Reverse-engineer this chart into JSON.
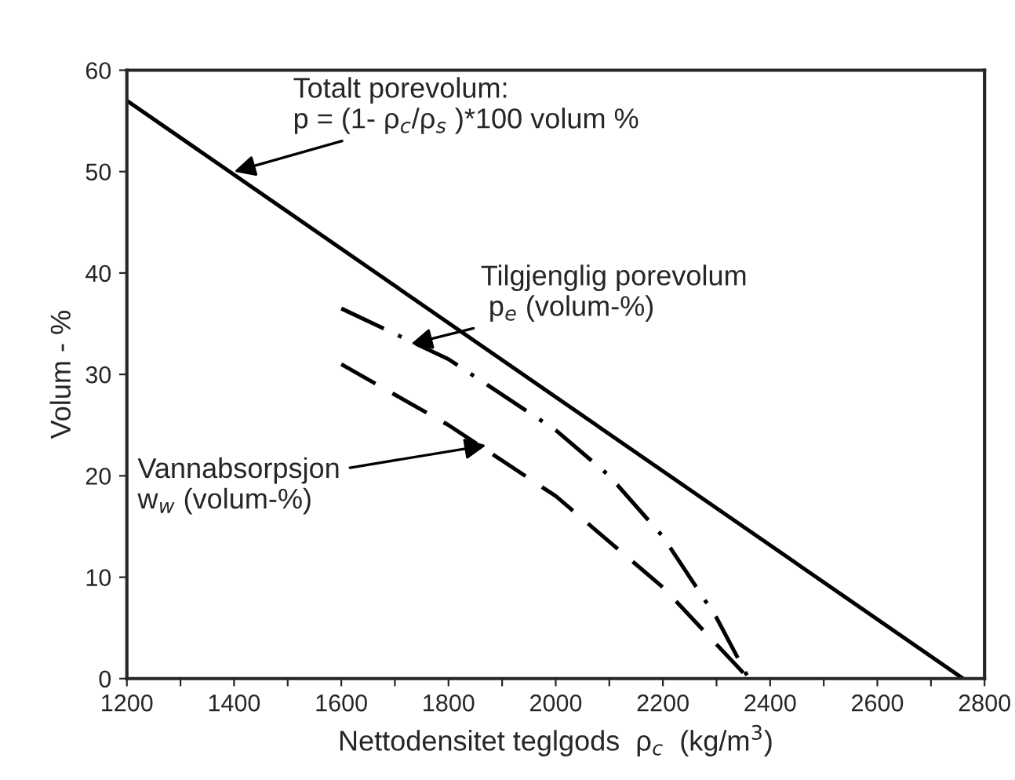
{
  "chart_data": {
    "type": "line",
    "xlabel": "Nettodensitet teglgods  ρ$_{c}$  (kg/m$^{3}$)",
    "ylabel": "Volum - %",
    "xlim": [
      1200,
      2800
    ],
    "ylim": [
      0,
      60
    ],
    "xticks": [
      1200,
      {
        "value": 1300,
        "label": null
      },
      1400,
      {
        "value": 1500,
        "label": null
      },
      1600,
      {
        "value": 1700,
        "label": null
      },
      1800,
      {
        "value": 1900,
        "label": null
      },
      2000,
      {
        "value": 2100,
        "label": null
      },
      2200,
      {
        "value": 2300,
        "label": null
      },
      2400,
      {
        "value": 2500,
        "label": null
      },
      2600,
      {
        "value": 2700,
        "label": null
      },
      2800
    ],
    "yticks": [
      0,
      10,
      20,
      30,
      40,
      50,
      60
    ],
    "grid": false,
    "legend": false,
    "marker": "none",
    "series": [
      {
        "color": "#000000",
        "line_style": "solid",
        "x": [
          1200,
          2760
        ],
        "values": [
          57,
          0
        ]
      },
      {
        "color": "#000000",
        "line_style": "dashdot",
        "x": [
          1600,
          1800,
          2000,
          2100,
          2200,
          2300,
          2360
        ],
        "values": [
          36.5,
          31.5,
          24.5,
          20,
          14,
          6,
          0
        ]
      },
      {
        "color": "#000000",
        "line_style": "dashed",
        "x": [
          1600,
          1800,
          2000,
          2200,
          2360
        ],
        "values": [
          31,
          25,
          18,
          9,
          0
        ]
      }
    ],
    "annotations": [
      {
        "text": "Totalt porevolum:\np = (1- ρ$_{c}$/ρ$_{s}$ )*100 volum %",
        "x": 1400,
        "y": 50
      },
      {
        "text": "Tilgjenglig porevolum\n p$_{e}$ (volum-%)",
        "x": 1730,
        "y": 33
      },
      {
        "text": "Vannabsorpsjon\nw$_{w}$ (volum-%)",
        "x": 1870,
        "y": 23
      }
    ]
  }
}
